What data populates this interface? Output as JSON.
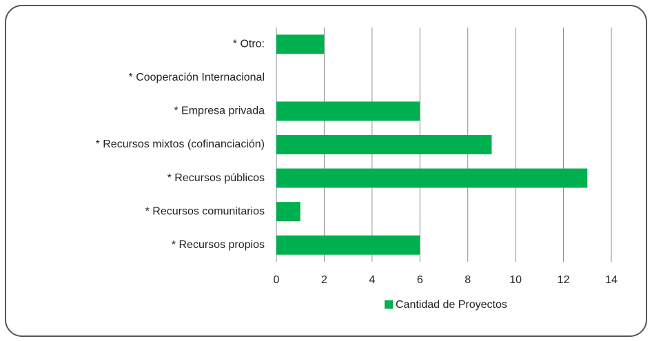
{
  "chart_data": {
    "type": "bar",
    "orientation": "horizontal",
    "categories": [
      "* Otro:",
      "* Cooperación Internacional",
      "* Empresa privada",
      "* Recursos mixtos (cofinanciación)",
      "* Recursos públicos",
      "* Recursos comunitarios",
      "* Recursos propios"
    ],
    "series": [
      {
        "name": "Cantidad de Proyectos",
        "color": "#00b050",
        "values": [
          2,
          0,
          6,
          9,
          13,
          1,
          6
        ]
      }
    ],
    "xlim": [
      0,
      14
    ],
    "xticks": [
      0,
      2,
      4,
      6,
      8,
      10,
      12,
      14
    ],
    "grid": true,
    "legend": "bottom"
  }
}
